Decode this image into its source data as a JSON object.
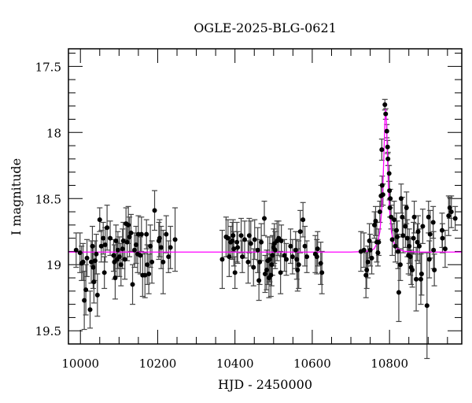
{
  "chart_data": {
    "type": "scatter",
    "title": "OGLE-2025-BLG-0621",
    "xlabel": "HJD - 2450000",
    "ylabel": "I magnitude",
    "xlim": [
      9969,
      10987
    ],
    "ylim": [
      19.6,
      17.367
    ],
    "y_inverted": true,
    "grid": false,
    "x_ticks": [
      10000,
      10200,
      10400,
      10600,
      10800
    ],
    "x_tick_labels": [
      "10000",
      "10200",
      "10400",
      "10600",
      "10800"
    ],
    "y_ticks": [
      17.5,
      18,
      18.5,
      19,
      19.5
    ],
    "y_tick_labels": [
      "17.5",
      "18",
      "18.5",
      "19",
      "19.5"
    ],
    "colors": {
      "points": "#000000",
      "error_bars": "#444444",
      "model": "#ff00ff",
      "axes": "#000000"
    },
    "observations": {
      "fields": [
        "hjd",
        "mag",
        "err"
      ],
      "points": [
        [
          9989,
          18.89,
          0.13
        ],
        [
          9999,
          18.91,
          0.15
        ],
        [
          10003,
          18.99,
          0.13
        ],
        [
          10007,
          18.98,
          0.14
        ],
        [
          10010,
          19.27,
          0.22
        ],
        [
          10014,
          19.19,
          0.19
        ],
        [
          10017,
          18.95,
          0.14
        ],
        [
          10025,
          19.34,
          0.14
        ],
        [
          10028,
          18.98,
          0.16
        ],
        [
          10031,
          18.86,
          0.15
        ],
        [
          10033,
          19.02,
          0.16
        ],
        [
          10035,
          19.13,
          0.16
        ],
        [
          10038,
          18.97,
          0.15
        ],
        [
          10041,
          18.92,
          0.15
        ],
        [
          10044,
          19.23,
          0.16
        ],
        [
          10050,
          18.66,
          0.09
        ],
        [
          10054,
          18.86,
          0.12
        ],
        [
          10059,
          18.8,
          0.12
        ],
        [
          10062,
          19.06,
          0.12
        ],
        [
          10064,
          18.85,
          0.13
        ],
        [
          10069,
          18.72,
          0.17
        ],
        [
          10077,
          18.8,
          0.13
        ],
        [
          10086,
          18.93,
          0.12
        ],
        [
          10088,
          18.98,
          0.13
        ],
        [
          10090,
          19.1,
          0.16
        ],
        [
          10092,
          18.82,
          0.12
        ],
        [
          10095,
          18.96,
          0.13
        ],
        [
          10097,
          18.89,
          0.14
        ],
        [
          10101,
          18.94,
          0.15
        ],
        [
          10105,
          19.0,
          0.16
        ],
        [
          10109,
          18.88,
          0.15
        ],
        [
          10111,
          18.82,
          0.14
        ],
        [
          10115,
          18.96,
          0.15
        ],
        [
          10118,
          18.69,
          0.12
        ],
        [
          10121,
          18.83,
          0.14
        ],
        [
          10124,
          18.7,
          0.14
        ],
        [
          10127,
          18.79,
          0.15
        ],
        [
          10131,
          18.76,
          0.14
        ],
        [
          10135,
          19.15,
          0.15
        ],
        [
          10140,
          18.89,
          0.13
        ],
        [
          10144,
          18.85,
          0.14
        ],
        [
          10148,
          18.92,
          0.14
        ],
        [
          10150,
          18.77,
          0.14
        ],
        [
          10155,
          18.93,
          0.14
        ],
        [
          10158,
          18.77,
          0.13
        ],
        [
          10161,
          19.08,
          0.16
        ],
        [
          10167,
          19.08,
          0.17
        ],
        [
          10171,
          18.77,
          0.11
        ],
        [
          10173,
          19.0,
          0.15
        ],
        [
          10177,
          19.07,
          0.15
        ],
        [
          10181,
          18.86,
          0.16
        ],
        [
          10185,
          18.98,
          0.16
        ],
        [
          10192,
          18.59,
          0.15
        ],
        [
          10203,
          18.82,
          0.14
        ],
        [
          10205,
          18.8,
          0.14
        ],
        [
          10209,
          18.87,
          0.16
        ],
        [
          10214,
          18.98,
          0.24
        ],
        [
          10222,
          18.77,
          0.14
        ],
        [
          10228,
          18.94,
          0.12
        ],
        [
          10233,
          18.87,
          0.16
        ],
        [
          10245,
          18.81,
          0.24
        ],
        [
          10367,
          18.96,
          0.22
        ],
        [
          10377,
          18.79,
          0.15
        ],
        [
          10382,
          18.8,
          0.14
        ],
        [
          10385,
          18.94,
          0.15
        ],
        [
          10389,
          18.83,
          0.12
        ],
        [
          10393,
          18.82,
          0.14
        ],
        [
          10395,
          18.78,
          0.12
        ],
        [
          10397,
          18.88,
          0.13
        ],
        [
          10400,
          19.06,
          0.12
        ],
        [
          10405,
          18.83,
          0.15
        ],
        [
          10407,
          18.87,
          0.12
        ],
        [
          10416,
          18.78,
          0.13
        ],
        [
          10419,
          18.94,
          0.12
        ],
        [
          10425,
          18.81,
          0.14
        ],
        [
          10434,
          18.98,
          0.16
        ],
        [
          10437,
          18.78,
          0.13
        ],
        [
          10441,
          18.84,
          0.17
        ],
        [
          10448,
          19.02,
          0.14
        ],
        [
          10451,
          18.81,
          0.15
        ],
        [
          10459,
          18.89,
          0.17
        ],
        [
          10462,
          19.12,
          0.15
        ],
        [
          10464,
          18.98,
          0.17
        ],
        [
          10468,
          18.83,
          0.14
        ],
        [
          10476,
          18.65,
          0.13
        ],
        [
          10478,
          19.07,
          0.14
        ],
        [
          10482,
          19.04,
          0.15
        ],
        [
          10485,
          18.97,
          0.18
        ],
        [
          10488,
          19.1,
          0.15
        ],
        [
          10490,
          18.96,
          0.17
        ],
        [
          10493,
          19.08,
          0.16
        ],
        [
          10495,
          19.0,
          0.16
        ],
        [
          10497,
          18.93,
          0.15
        ],
        [
          10500,
          18.87,
          0.14
        ],
        [
          10502,
          18.84,
          0.15
        ],
        [
          10504,
          18.89,
          0.14
        ],
        [
          10509,
          18.82,
          0.15
        ],
        [
          10513,
          18.8,
          0.13
        ],
        [
          10518,
          19.06,
          0.16
        ],
        [
          10520,
          18.82,
          0.12
        ],
        [
          10528,
          18.93,
          0.12
        ],
        [
          10533,
          18.96,
          0.12
        ],
        [
          10544,
          18.86,
          0.13
        ],
        [
          10549,
          18.94,
          0.13
        ],
        [
          10557,
          18.89,
          0.14
        ],
        [
          10560,
          18.96,
          0.15
        ],
        [
          10562,
          19.04,
          0.16
        ],
        [
          10565,
          19.0,
          0.18
        ],
        [
          10569,
          18.75,
          0.16
        ],
        [
          10576,
          18.66,
          0.13
        ],
        [
          10581,
          18.86,
          0.15
        ],
        [
          10586,
          18.94,
          0.12
        ],
        [
          10608,
          18.92,
          0.14
        ],
        [
          10612,
          18.94,
          0.13
        ],
        [
          10614,
          18.88,
          0.13
        ],
        [
          10622,
          18.99,
          0.16
        ],
        [
          10625,
          19.06,
          0.16
        ],
        [
          10726,
          18.9,
          0.15
        ],
        [
          10734,
          18.89,
          0.13
        ],
        [
          10739,
          19.08,
          0.17
        ],
        [
          10741,
          19.04,
          0.14
        ],
        [
          10744,
          18.98,
          0.12
        ],
        [
          10748,
          18.82,
          0.13
        ],
        [
          10750,
          18.89,
          0.12
        ],
        [
          10754,
          18.95,
          0.12
        ],
        [
          10761,
          18.7,
          0.1
        ],
        [
          10764,
          18.67,
          0.11
        ],
        [
          10767,
          18.83,
          0.15
        ],
        [
          10770,
          18.91,
          0.1
        ],
        [
          10772,
          18.83,
          0.1
        ],
        [
          10775,
          18.6,
          0.08
        ],
        [
          10778,
          18.48,
          0.08
        ],
        [
          10781,
          18.4,
          0.07
        ],
        [
          10783,
          18.47,
          0.08
        ],
        [
          10780,
          18.13,
          0.08
        ],
        [
          10788,
          17.79,
          0.04
        ],
        [
          10790,
          17.86,
          0.04
        ],
        [
          10793,
          17.99,
          0.05
        ],
        [
          10795,
          18.11,
          0.05
        ],
        [
          10796,
          18.2,
          0.05
        ],
        [
          10799,
          18.31,
          0.06
        ],
        [
          10800,
          18.44,
          0.07
        ],
        [
          10802,
          18.5,
          0.07
        ],
        [
          10801,
          18.57,
          0.07
        ],
        [
          10804,
          18.64,
          0.09
        ],
        [
          10807,
          18.81,
          0.12
        ],
        [
          10812,
          18.66,
          0.14
        ],
        [
          10815,
          18.86,
          0.12
        ],
        [
          10818,
          18.74,
          0.13
        ],
        [
          10820,
          18.79,
          0.12
        ],
        [
          10822,
          18.9,
          0.13
        ],
        [
          10824,
          19.21,
          0.22
        ],
        [
          10828,
          19.0,
          0.12
        ],
        [
          10830,
          18.5,
          0.11
        ],
        [
          10833,
          18.64,
          0.15
        ],
        [
          10835,
          18.78,
          0.13
        ],
        [
          10841,
          18.71,
          0.16
        ],
        [
          10844,
          18.57,
          0.12
        ],
        [
          10846,
          18.8,
          0.14
        ],
        [
          10849,
          18.93,
          0.14
        ],
        [
          10851,
          18.86,
          0.13
        ],
        [
          10854,
          18.94,
          0.14
        ],
        [
          10856,
          19.02,
          0.13
        ],
        [
          10859,
          19.04,
          0.13
        ],
        [
          10862,
          18.8,
          0.12
        ],
        [
          10864,
          18.64,
          0.12
        ],
        [
          10869,
          19.11,
          0.24
        ],
        [
          10872,
          18.83,
          0.14
        ],
        [
          10874,
          18.75,
          0.12
        ],
        [
          10877,
          18.86,
          0.13
        ],
        [
          10881,
          19.11,
          0.19
        ],
        [
          10883,
          19.07,
          0.16
        ],
        [
          10886,
          18.71,
          0.13
        ],
        [
          10897,
          19.31,
          0.4
        ],
        [
          10901,
          18.64,
          0.12
        ],
        [
          10903,
          18.96,
          0.14
        ],
        [
          10905,
          18.77,
          0.18
        ],
        [
          10913,
          18.68,
          0.12
        ],
        [
          10914,
          18.89,
          0.14
        ],
        [
          10916,
          19.04,
          0.12
        ],
        [
          10936,
          18.74,
          0.13
        ],
        [
          10937,
          18.8,
          0.11
        ],
        [
          10944,
          18.88,
          0.14
        ],
        [
          10953,
          18.63,
          0.15
        ],
        [
          10956,
          18.57,
          0.08
        ],
        [
          10960,
          18.6,
          0.12
        ],
        [
          10970,
          18.65,
          0.09
        ]
      ]
    },
    "model": {
      "fields": [
        "hjd",
        "mag"
      ],
      "points": [
        [
          9969,
          18.905
        ],
        [
          10700,
          18.905
        ],
        [
          10740,
          18.9
        ],
        [
          10760,
          18.881
        ],
        [
          10770,
          18.827
        ],
        [
          10775,
          18.75
        ],
        [
          10780,
          18.58
        ],
        [
          10783,
          18.391
        ],
        [
          10786,
          18.114
        ],
        [
          10788,
          17.918
        ],
        [
          10790,
          17.823
        ],
        [
          10792,
          17.918
        ],
        [
          10794,
          18.114
        ],
        [
          10797,
          18.391
        ],
        [
          10800,
          18.58
        ],
        [
          10805,
          18.75
        ],
        [
          10810,
          18.827
        ],
        [
          10820,
          18.881
        ],
        [
          10840,
          18.9
        ],
        [
          10880,
          18.905
        ],
        [
          10987,
          18.905
        ]
      ]
    }
  }
}
